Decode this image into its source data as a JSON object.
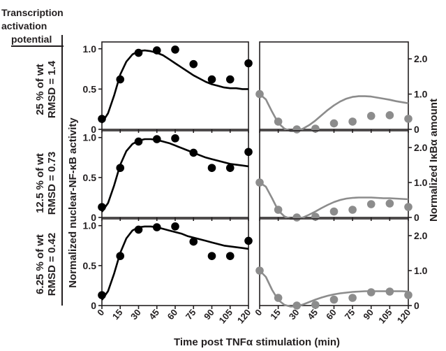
{
  "header": {
    "line1": "Transcription",
    "line2": "activation",
    "line3": "potential"
  },
  "rows": [
    {
      "pct": "25 % of wt",
      "rmsd": "RMSD = 1.4"
    },
    {
      "pct": "12.5 % of wt",
      "rmsd": "RMSD = 0.73"
    },
    {
      "pct": "6.25 % of wt",
      "rmsd": "RMSD = 0.42"
    }
  ],
  "xlabel": "Time post TNFα stimulation (min)",
  "ylabel_left": "Normalized nuclear-NF-κB activity",
  "ylabel_right": "Normalized IκBα amount",
  "colors": {
    "nfkb": "#000000",
    "ikba": "#8c8c8c",
    "axis": "#231f20"
  },
  "chart_data": [
    {
      "type": "scatter",
      "panel": "nfkb-25",
      "x": [
        0,
        15,
        30,
        45,
        60,
        75,
        90,
        105,
        120
      ],
      "values": [
        0.13,
        0.62,
        0.95,
        0.98,
        0.99,
        0.81,
        0.62,
        0.62,
        0.82
      ],
      "model": {
        "x": [
          0,
          5,
          10,
          15,
          20,
          25,
          30,
          35,
          40,
          45,
          50,
          55,
          60,
          65,
          70,
          75,
          80,
          85,
          90,
          95,
          100,
          105,
          110,
          115,
          120
        ],
        "y": [
          0.08,
          0.2,
          0.42,
          0.68,
          0.84,
          0.93,
          0.97,
          0.98,
          0.97,
          0.95,
          0.92,
          0.87,
          0.82,
          0.77,
          0.72,
          0.67,
          0.63,
          0.59,
          0.56,
          0.54,
          0.52,
          0.51,
          0.51,
          0.5,
          0.5
        ]
      },
      "xlim": [
        0,
        120
      ],
      "ylim": [
        0,
        1.05
      ],
      "yticks": [
        "0",
        "0.5",
        "1.0"
      ]
    },
    {
      "type": "scatter",
      "panel": "nfkb-12.5",
      "x": [
        0,
        15,
        30,
        45,
        60,
        75,
        90,
        105,
        120
      ],
      "values": [
        0.13,
        0.62,
        0.95,
        0.98,
        0.99,
        0.81,
        0.62,
        0.62,
        0.82
      ],
      "model": {
        "x": [
          0,
          5,
          10,
          15,
          20,
          25,
          30,
          35,
          40,
          45,
          50,
          55,
          60,
          65,
          70,
          75,
          80,
          85,
          90,
          95,
          100,
          105,
          110,
          115,
          120
        ],
        "y": [
          0.07,
          0.18,
          0.4,
          0.66,
          0.83,
          0.92,
          0.96,
          0.98,
          0.98,
          0.97,
          0.95,
          0.93,
          0.9,
          0.87,
          0.84,
          0.81,
          0.78,
          0.75,
          0.73,
          0.71,
          0.69,
          0.67,
          0.66,
          0.65,
          0.64
        ]
      },
      "xlim": [
        0,
        120
      ],
      "ylim": [
        0,
        1.05
      ],
      "yticks": [
        "0",
        "0.5",
        "1.0"
      ]
    },
    {
      "type": "scatter",
      "panel": "nfkb-6.25",
      "x": [
        0,
        15,
        30,
        45,
        60,
        75,
        90,
        105,
        120
      ],
      "values": [
        0.13,
        0.62,
        0.95,
        0.98,
        0.99,
        0.8,
        0.62,
        0.62,
        0.81
      ],
      "model": {
        "x": [
          0,
          5,
          10,
          15,
          20,
          25,
          30,
          35,
          40,
          45,
          50,
          55,
          60,
          65,
          70,
          75,
          80,
          85,
          90,
          95,
          100,
          105,
          110,
          115,
          120
        ],
        "y": [
          0.07,
          0.18,
          0.4,
          0.66,
          0.84,
          0.94,
          0.98,
          0.99,
          0.99,
          0.98,
          0.96,
          0.94,
          0.92,
          0.9,
          0.87,
          0.85,
          0.83,
          0.81,
          0.79,
          0.77,
          0.75,
          0.74,
          0.73,
          0.72,
          0.71
        ]
      },
      "xlim": [
        0,
        120
      ],
      "ylim": [
        0,
        1.05
      ],
      "yticks": [
        "0",
        "0.5",
        "1.0"
      ]
    },
    {
      "type": "scatter",
      "panel": "ikba-25",
      "x": [
        0,
        15,
        30,
        45,
        60,
        75,
        90,
        105,
        120
      ],
      "values": [
        1.0,
        0.22,
        0.0,
        0.02,
        0.17,
        0.22,
        0.38,
        0.4,
        0.3
      ],
      "model": {
        "x": [
          0,
          5,
          10,
          15,
          20,
          25,
          30,
          35,
          40,
          45,
          50,
          55,
          60,
          65,
          70,
          75,
          80,
          85,
          90,
          95,
          100,
          105,
          110,
          115,
          120
        ],
        "y": [
          1.0,
          0.85,
          0.5,
          0.18,
          0.02,
          -0.05,
          -0.05,
          0.02,
          0.12,
          0.25,
          0.4,
          0.55,
          0.68,
          0.79,
          0.87,
          0.92,
          0.94,
          0.94,
          0.93,
          0.9,
          0.87,
          0.84,
          0.8,
          0.77,
          0.74
        ]
      },
      "xlim": [
        0,
        120
      ],
      "ylim": [
        0,
        2.4
      ],
      "yticks": [
        "0",
        "1.0",
        "2.0"
      ]
    },
    {
      "type": "scatter",
      "panel": "ikba-12.5",
      "x": [
        0,
        15,
        30,
        45,
        60,
        75,
        90,
        105,
        120
      ],
      "values": [
        1.0,
        0.22,
        0.0,
        0.02,
        0.17,
        0.22,
        0.38,
        0.4,
        0.3
      ],
      "model": {
        "x": [
          0,
          5,
          10,
          15,
          20,
          25,
          30,
          35,
          40,
          45,
          50,
          55,
          60,
          65,
          70,
          75,
          80,
          85,
          90,
          95,
          100,
          105,
          110,
          115,
          120
        ],
        "y": [
          1.0,
          0.88,
          0.55,
          0.2,
          0.03,
          -0.04,
          -0.04,
          0.0,
          0.08,
          0.17,
          0.27,
          0.36,
          0.44,
          0.5,
          0.54,
          0.56,
          0.57,
          0.57,
          0.57,
          0.56,
          0.55,
          0.55,
          0.54,
          0.53,
          0.52
        ]
      },
      "xlim": [
        0,
        120
      ],
      "ylim": [
        0,
        2.4
      ],
      "yticks": [
        "0",
        "1.0",
        "2.0"
      ]
    },
    {
      "type": "scatter",
      "panel": "ikba-6.25",
      "x": [
        0,
        15,
        30,
        45,
        60,
        75,
        90,
        105,
        120
      ],
      "values": [
        1.0,
        0.22,
        0.0,
        0.02,
        0.17,
        0.22,
        0.38,
        0.4,
        0.3
      ],
      "model": {
        "x": [
          0,
          5,
          10,
          15,
          20,
          25,
          30,
          35,
          40,
          45,
          50,
          55,
          60,
          65,
          70,
          75,
          80,
          85,
          90,
          95,
          100,
          105,
          110,
          115,
          120
        ],
        "y": [
          1.0,
          0.82,
          0.45,
          0.16,
          0.02,
          -0.03,
          -0.02,
          0.03,
          0.1,
          0.17,
          0.23,
          0.28,
          0.32,
          0.35,
          0.37,
          0.39,
          0.4,
          0.41,
          0.41,
          0.41,
          0.41,
          0.41,
          0.41,
          0.41,
          0.4
        ]
      },
      "xlim": [
        0,
        120
      ],
      "ylim": [
        0,
        2.4
      ],
      "yticks": [
        "0",
        "1.0",
        "2.0"
      ]
    }
  ],
  "xticks": [
    "0",
    "15",
    "30",
    "45",
    "60",
    "75",
    "90",
    "105",
    "120"
  ]
}
